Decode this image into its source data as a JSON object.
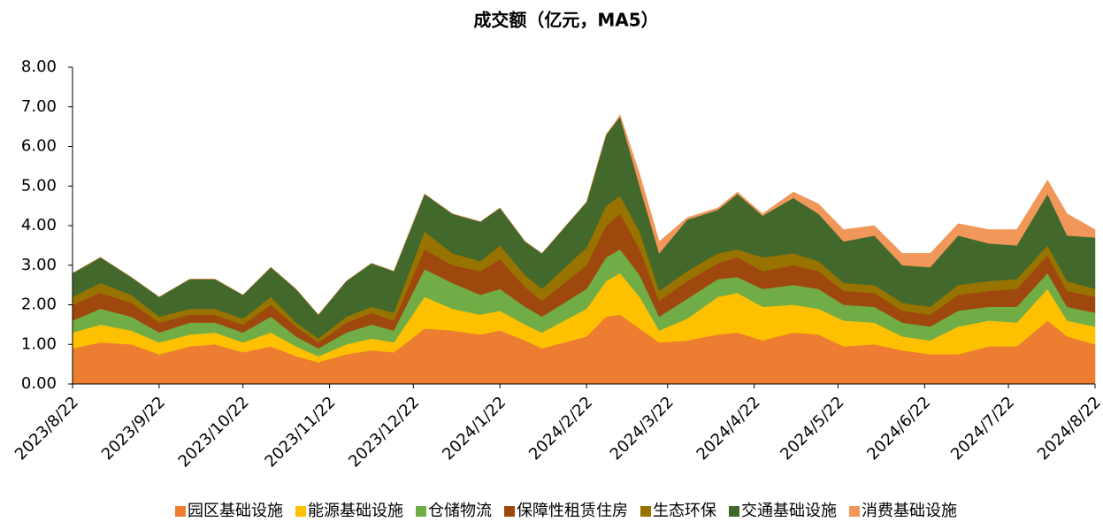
{
  "chart_data": {
    "type": "stacked_area",
    "title": "成交额（亿元，MA5）",
    "x": [
      "2023/8/22",
      "2023/9/1",
      "2023/9/12",
      "2023/9/22",
      "2023/10/3",
      "2023/10/12",
      "2023/10/22",
      "2023/11/1",
      "2023/11/10",
      "2023/11/18",
      "2023/11/28",
      "2023/12/7",
      "2023/12/15",
      "2023/12/26",
      "2024/1/5",
      "2024/1/15",
      "2024/1/22",
      "2024/1/31",
      "2024/2/6",
      "2024/2/22",
      "2024/2/29",
      "2024/3/5",
      "2024/3/12",
      "2024/3/19",
      "2024/3/29",
      "2024/4/9",
      "2024/4/16",
      "2024/4/25",
      "2024/5/6",
      "2024/5/15",
      "2024/5/24",
      "2024/6/4",
      "2024/6/14",
      "2024/6/24",
      "2024/7/4",
      "2024/7/15",
      "2024/7/25",
      "2024/8/5",
      "2024/8/12",
      "2024/8/22"
    ],
    "series": [
      {
        "name": "园区基础设施",
        "color": "#ED7D31",
        "values": [
          0.9,
          1.05,
          1.0,
          0.75,
          0.95,
          1.0,
          0.8,
          0.95,
          0.7,
          0.55,
          0.75,
          0.85,
          0.8,
          1.4,
          1.35,
          1.25,
          1.35,
          1.1,
          0.9,
          1.2,
          1.7,
          1.75,
          1.4,
          1.05,
          1.1,
          1.25,
          1.3,
          1.1,
          1.3,
          1.25,
          0.95,
          1.0,
          0.85,
          0.75,
          0.75,
          0.95,
          0.95,
          1.6,
          1.2,
          1.0
        ]
      },
      {
        "name": "能源基础设施",
        "color": "#FFC000",
        "values": [
          0.4,
          0.45,
          0.35,
          0.3,
          0.3,
          0.3,
          0.25,
          0.35,
          0.25,
          0.15,
          0.25,
          0.3,
          0.25,
          0.8,
          0.55,
          0.5,
          0.5,
          0.4,
          0.4,
          0.7,
          0.9,
          1.05,
          0.8,
          0.3,
          0.55,
          0.95,
          1.0,
          0.85,
          0.7,
          0.65,
          0.65,
          0.55,
          0.35,
          0.35,
          0.7,
          0.65,
          0.6,
          0.8,
          0.4,
          0.45
        ]
      },
      {
        "name": "仓储物流",
        "color": "#70AD47",
        "values": [
          0.3,
          0.4,
          0.35,
          0.25,
          0.3,
          0.25,
          0.25,
          0.4,
          0.25,
          0.2,
          0.3,
          0.35,
          0.3,
          0.7,
          0.65,
          0.5,
          0.55,
          0.45,
          0.4,
          0.5,
          0.6,
          0.6,
          0.55,
          0.35,
          0.5,
          0.45,
          0.4,
          0.45,
          0.5,
          0.5,
          0.4,
          0.4,
          0.35,
          0.35,
          0.4,
          0.35,
          0.4,
          0.4,
          0.35,
          0.35
        ]
      },
      {
        "name": "保障性租赁住房",
        "color": "#9E480E",
        "values": [
          0.4,
          0.4,
          0.35,
          0.25,
          0.2,
          0.2,
          0.2,
          0.3,
          0.25,
          0.15,
          0.25,
          0.3,
          0.25,
          0.5,
          0.45,
          0.6,
          0.75,
          0.5,
          0.4,
          0.6,
          0.8,
          0.9,
          0.65,
          0.4,
          0.45,
          0.4,
          0.5,
          0.45,
          0.5,
          0.45,
          0.35,
          0.35,
          0.3,
          0.3,
          0.4,
          0.4,
          0.45,
          0.45,
          0.4,
          0.4
        ]
      },
      {
        "name": "生态环保",
        "color": "#997300",
        "values": [
          0.2,
          0.25,
          0.2,
          0.15,
          0.15,
          0.15,
          0.15,
          0.2,
          0.1,
          0.1,
          0.15,
          0.15,
          0.2,
          0.45,
          0.3,
          0.25,
          0.35,
          0.3,
          0.3,
          0.45,
          0.5,
          0.45,
          0.45,
          0.25,
          0.25,
          0.25,
          0.2,
          0.35,
          0.3,
          0.25,
          0.2,
          0.2,
          0.2,
          0.2,
          0.25,
          0.25,
          0.25,
          0.25,
          0.25,
          0.2
        ]
      },
      {
        "name": "交通基础设施",
        "color": "#43682B",
        "values": [
          0.6,
          0.65,
          0.45,
          0.5,
          0.75,
          0.75,
          0.6,
          0.75,
          0.85,
          0.6,
          0.9,
          1.1,
          1.05,
          0.95,
          1.0,
          1.0,
          0.95,
          0.85,
          0.9,
          1.15,
          1.8,
          2.0,
          1.15,
          0.95,
          1.3,
          1.1,
          1.4,
          1.05,
          1.4,
          1.2,
          1.05,
          1.25,
          0.95,
          1.0,
          1.25,
          0.95,
          0.85,
          1.3,
          1.15,
          1.3
        ]
      },
      {
        "name": "消费基础设施",
        "color": "#F1975A",
        "values": [
          0,
          0,
          0,
          0,
          0,
          0,
          0,
          0,
          0,
          0,
          0,
          0,
          0,
          0,
          0,
          0,
          0,
          0,
          0,
          0,
          0,
          0.05,
          0.3,
          0.3,
          0.05,
          0.05,
          0.05,
          0.05,
          0.15,
          0.25,
          0.3,
          0.25,
          0.3,
          0.35,
          0.3,
          0.35,
          0.4,
          0.35,
          0.55,
          0.2
        ]
      }
    ],
    "xlim": [
      "2023/8/22",
      "2024/8/22"
    ],
    "xticks": [
      "2023/8/22",
      "2023/9/22",
      "2023/10/22",
      "2023/11/22",
      "2023/12/22",
      "2024/1/22",
      "2024/2/22",
      "2024/3/22",
      "2024/4/22",
      "2024/5/22",
      "2024/6/22",
      "2024/7/22",
      "2024/8/22"
    ],
    "ylim": [
      0,
      8
    ],
    "yticks": [
      {
        "value": 0,
        "label": "0.00"
      },
      {
        "value": 1,
        "label": "1.00"
      },
      {
        "value": 2,
        "label": "2.00"
      },
      {
        "value": 3,
        "label": "3.00"
      },
      {
        "value": 4,
        "label": "4.00"
      },
      {
        "value": 5,
        "label": "5.00"
      },
      {
        "value": 6,
        "label": "6.00"
      },
      {
        "value": 7,
        "label": "7.00"
      },
      {
        "value": 8,
        "label": "8.00"
      }
    ],
    "legend": "bottom"
  }
}
